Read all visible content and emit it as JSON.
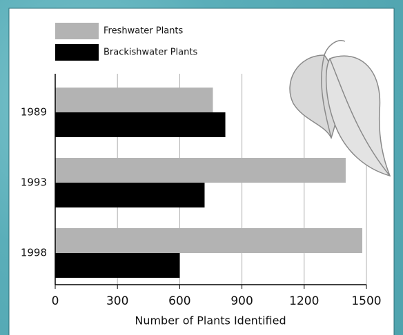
{
  "chart_data": {
    "type": "hbar",
    "categories": [
      "1989",
      "1993",
      "1998"
    ],
    "series": [
      {
        "name": "Freshwater Plants",
        "color": "#b3b3b3",
        "values": [
          760,
          1400,
          1480
        ]
      },
      {
        "name": "Brackishwater Plants",
        "color": "#000000",
        "values": [
          820,
          720,
          600
        ]
      }
    ],
    "xlabel": "Number of Plants Identified",
    "xlim": [
      0,
      1500
    ],
    "xticks": [
      0,
      300,
      600,
      900,
      1200,
      1500
    ],
    "grid": true
  }
}
